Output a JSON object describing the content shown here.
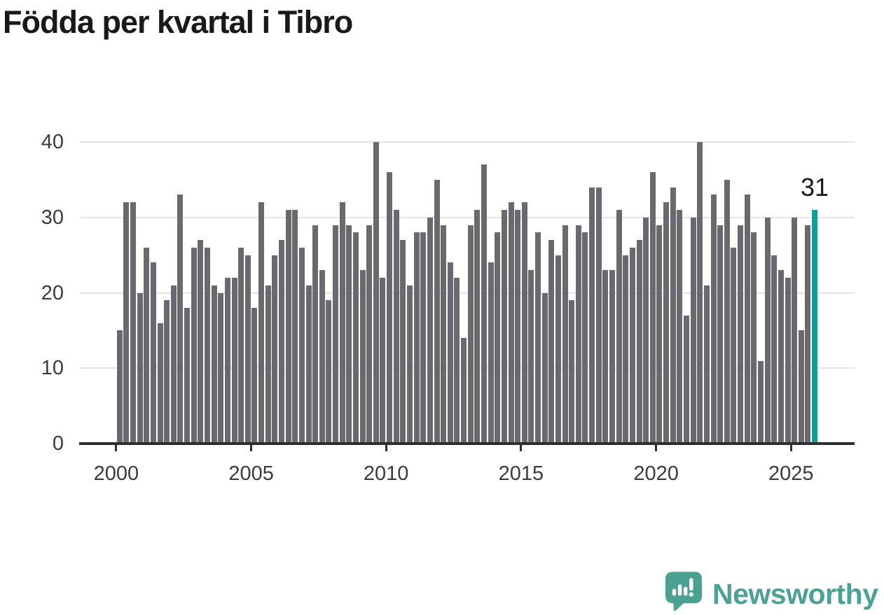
{
  "title": "Födda per kvartal i Tibro",
  "value_label": {
    "text": "31"
  },
  "y_axis": {
    "tick_labels": [
      "0",
      "10",
      "20",
      "30",
      "40"
    ]
  },
  "x_axis": {
    "tick_labels": [
      "2000",
      "2005",
      "2010",
      "2015",
      "2020",
      "2025"
    ]
  },
  "logo": {
    "wordmark": "Newsworthy",
    "icon": "newsworthy-speech-bubble-chart-icon"
  },
  "colors": {
    "bar": "#6a6970",
    "highlight": "#0aa19a",
    "gridline": "#e4e4e4",
    "axis": "#2f2f2f",
    "tick_text": "#3b3b3b",
    "title_text": "#191919",
    "logo_teal": "#4ba294"
  },
  "chart_data": {
    "type": "bar",
    "title": "Födda per kvartal i Tibro",
    "period": {
      "start_year": 2000,
      "start_quarter": 1,
      "end_year": 2025,
      "end_quarter": 4,
      "frequency": "quarterly"
    },
    "values": [
      15,
      32,
      32,
      20,
      26,
      24,
      16,
      19,
      21,
      33,
      18,
      26,
      27,
      26,
      21,
      20,
      22,
      22,
      26,
      25,
      18,
      32,
      21,
      25,
      27,
      31,
      31,
      26,
      21,
      29,
      23,
      19,
      29,
      32,
      29,
      28,
      23,
      29,
      40,
      22,
      36,
      31,
      27,
      21,
      28,
      28,
      30,
      35,
      29,
      24,
      22,
      14,
      29,
      31,
      37,
      24,
      28,
      31,
      32,
      31,
      32,
      23,
      28,
      20,
      27,
      25,
      29,
      19,
      29,
      28,
      34,
      34,
      23,
      23,
      31,
      25,
      26,
      27,
      30,
      36,
      29,
      32,
      34,
      31,
      17,
      30,
      40,
      21,
      33,
      29,
      35,
      26,
      29,
      33,
      28,
      11,
      30,
      25,
      23,
      22,
      30,
      15,
      29,
      31
    ],
    "highlighted_index": 103,
    "highlighted_value_label": "31",
    "ylim": [
      0,
      40
    ],
    "y_ticks": [
      0,
      10,
      20,
      30,
      40
    ],
    "x_tick_years": [
      2000,
      2005,
      2010,
      2015,
      2020,
      2025
    ],
    "grid": "horizontal",
    "legend": "none"
  }
}
